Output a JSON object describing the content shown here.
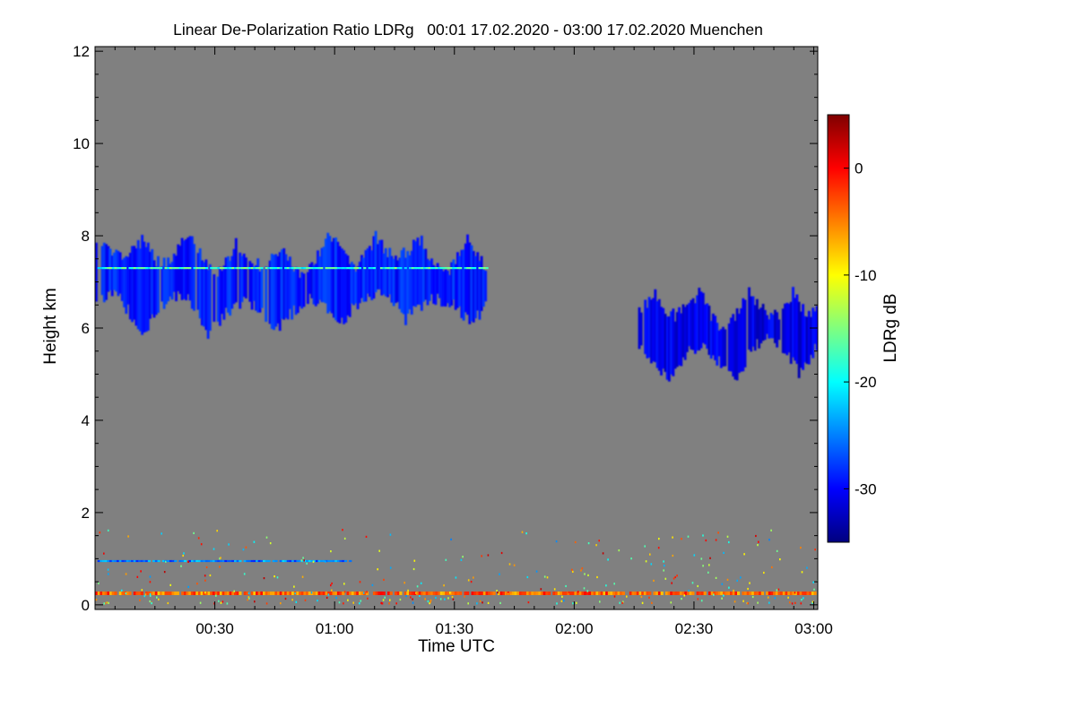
{
  "chart_data": {
    "type": "heatmap",
    "title": "Linear De-Polarization Ratio LDRg   00:01 17.02.2020 - 03:00 17.02.2020 Muenchen",
    "xlabel": "Time UTC",
    "ylabel": "Height km",
    "xlim_min": [
      0,
      181
    ],
    "ylim_km": [
      -0.1,
      12.1
    ],
    "x_ticks": [
      {
        "label": "00:30",
        "min": 30
      },
      {
        "label": "01:00",
        "min": 60
      },
      {
        "label": "01:30",
        "min": 90
      },
      {
        "label": "02:00",
        "min": 120
      },
      {
        "label": "02:30",
        "min": 150
      },
      {
        "label": "03:00",
        "min": 180
      }
    ],
    "y_ticks": [
      {
        "label": "0",
        "km": 0
      },
      {
        "label": "2",
        "km": 2
      },
      {
        "label": "4",
        "km": 4
      },
      {
        "label": "6",
        "km": 6
      },
      {
        "label": "8",
        "km": 8
      },
      {
        "label": "10",
        "km": 10
      },
      {
        "label": "12",
        "km": 12
      }
    ],
    "colorbar": {
      "label": "LDRg dB",
      "range_db": [
        -35,
        5
      ],
      "ticks": [
        {
          "label": "0",
          "db": 0
        },
        {
          "label": "-10",
          "db": -10
        },
        {
          "label": "-20",
          "db": -20
        },
        {
          "label": "-30",
          "db": -30
        }
      ],
      "colormap": "jet"
    },
    "background": {
      "name": "no-signal",
      "color": "#808080"
    },
    "features": [
      {
        "name": "cirrus-layer-1",
        "t_start_min": 0,
        "t_end_min": 98,
        "base_km": 5.7,
        "top_km": 8.1,
        "ldr_db": -29
      },
      {
        "name": "cirrus-layer-2",
        "t_start_min": 136,
        "t_end_min": 181,
        "base_km": 4.7,
        "top_km": 7.0,
        "ldr_db": -31
      },
      {
        "name": "enhanced-ldr-line",
        "t_start_min": 0,
        "t_end_min": 98,
        "height_km": 7.3,
        "ldr_db": -18
      },
      {
        "name": "surface-band",
        "t_start_min": 0,
        "t_end_min": 181,
        "height_km": 0.25,
        "ldr_db": -4
      },
      {
        "name": "low-layer-line",
        "t_start_min": 0,
        "t_end_min": 64,
        "height_km": 0.95,
        "ldr_db": -25
      }
    ]
  }
}
